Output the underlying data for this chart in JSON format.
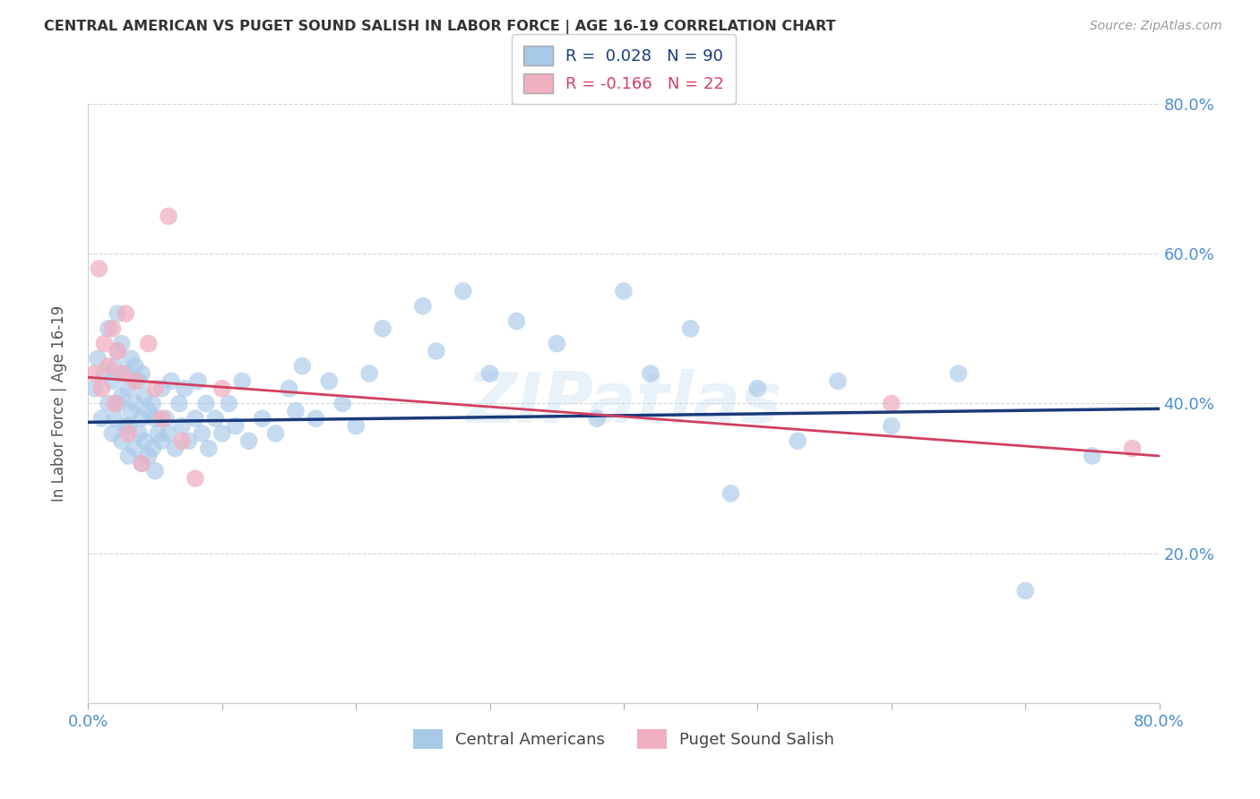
{
  "title": "CENTRAL AMERICAN VS PUGET SOUND SALISH IN LABOR FORCE | AGE 16-19 CORRELATION CHART",
  "source": "Source: ZipAtlas.com",
  "ylabel": "In Labor Force | Age 16-19",
  "r_blue": 0.028,
  "n_blue": 90,
  "r_pink": -0.166,
  "n_pink": 22,
  "xmin": 0.0,
  "xmax": 0.8,
  "ymin": 0.0,
  "ymax": 0.8,
  "ytick_labels": [
    "20.0%",
    "40.0%",
    "60.0%",
    "80.0%"
  ],
  "ytick_values": [
    0.2,
    0.4,
    0.6,
    0.8
  ],
  "xtick_positions": [
    0.0,
    0.1,
    0.2,
    0.3,
    0.4,
    0.5,
    0.6,
    0.7,
    0.8
  ],
  "xtick_labels": [
    "0.0%",
    "",
    "",
    "",
    "",
    "",
    "",
    "",
    "80.0%"
  ],
  "background_color": "#ffffff",
  "blue_color": "#a8c8e8",
  "blue_line_color": "#1a3a7a",
  "pink_color": "#f0b0c0",
  "pink_line_color": "#d04060",
  "axis_color": "#4a90d0",
  "grid_color": "#cccccc",
  "watermark": "ZIPatlas",
  "title_color": "#333333",
  "source_color": "#999999",
  "ylabel_color": "#555555",
  "blue_scatter_x": [
    0.005,
    0.007,
    0.01,
    0.012,
    0.015,
    0.015,
    0.018,
    0.018,
    0.02,
    0.02,
    0.022,
    0.022,
    0.022,
    0.025,
    0.025,
    0.025,
    0.028,
    0.028,
    0.03,
    0.03,
    0.03,
    0.032,
    0.032,
    0.035,
    0.035,
    0.035,
    0.038,
    0.038,
    0.04,
    0.04,
    0.04,
    0.042,
    0.042,
    0.045,
    0.045,
    0.048,
    0.048,
    0.05,
    0.05,
    0.052,
    0.055,
    0.055,
    0.058,
    0.06,
    0.062,
    0.065,
    0.068,
    0.07,
    0.072,
    0.075,
    0.08,
    0.082,
    0.085,
    0.088,
    0.09,
    0.095,
    0.1,
    0.105,
    0.11,
    0.115,
    0.12,
    0.13,
    0.14,
    0.15,
    0.155,
    0.16,
    0.17,
    0.18,
    0.19,
    0.2,
    0.21,
    0.22,
    0.25,
    0.26,
    0.28,
    0.3,
    0.32,
    0.35,
    0.38,
    0.4,
    0.42,
    0.45,
    0.48,
    0.5,
    0.53,
    0.56,
    0.6,
    0.65,
    0.7,
    0.75
  ],
  "blue_scatter_y": [
    0.42,
    0.46,
    0.38,
    0.44,
    0.4,
    0.5,
    0.36,
    0.43,
    0.38,
    0.45,
    0.4,
    0.47,
    0.52,
    0.35,
    0.41,
    0.48,
    0.37,
    0.44,
    0.33,
    0.37,
    0.42,
    0.39,
    0.46,
    0.34,
    0.4,
    0.45,
    0.36,
    0.43,
    0.32,
    0.38,
    0.44,
    0.35,
    0.41,
    0.33,
    0.39,
    0.34,
    0.4,
    0.31,
    0.38,
    0.36,
    0.42,
    0.35,
    0.38,
    0.36,
    0.43,
    0.34,
    0.4,
    0.37,
    0.42,
    0.35,
    0.38,
    0.43,
    0.36,
    0.4,
    0.34,
    0.38,
    0.36,
    0.4,
    0.37,
    0.43,
    0.35,
    0.38,
    0.36,
    0.42,
    0.39,
    0.45,
    0.38,
    0.43,
    0.4,
    0.37,
    0.44,
    0.5,
    0.53,
    0.47,
    0.55,
    0.44,
    0.51,
    0.48,
    0.38,
    0.55,
    0.44,
    0.5,
    0.28,
    0.42,
    0.35,
    0.43,
    0.37,
    0.44,
    0.15,
    0.33
  ],
  "pink_scatter_x": [
    0.005,
    0.008,
    0.01,
    0.012,
    0.015,
    0.018,
    0.02,
    0.022,
    0.025,
    0.028,
    0.03,
    0.035,
    0.04,
    0.045,
    0.05,
    0.055,
    0.06,
    0.07,
    0.08,
    0.1,
    0.6,
    0.78
  ],
  "pink_scatter_y": [
    0.44,
    0.58,
    0.42,
    0.48,
    0.45,
    0.5,
    0.4,
    0.47,
    0.44,
    0.52,
    0.36,
    0.43,
    0.32,
    0.48,
    0.42,
    0.38,
    0.65,
    0.35,
    0.3,
    0.42,
    0.4,
    0.34
  ],
  "blue_line_x0": 0.0,
  "blue_line_x1": 0.8,
  "blue_line_y0": 0.375,
  "blue_line_y1": 0.393,
  "pink_line_x0": 0.0,
  "pink_line_x1": 0.8,
  "pink_line_y0": 0.435,
  "pink_line_y1": 0.33
}
